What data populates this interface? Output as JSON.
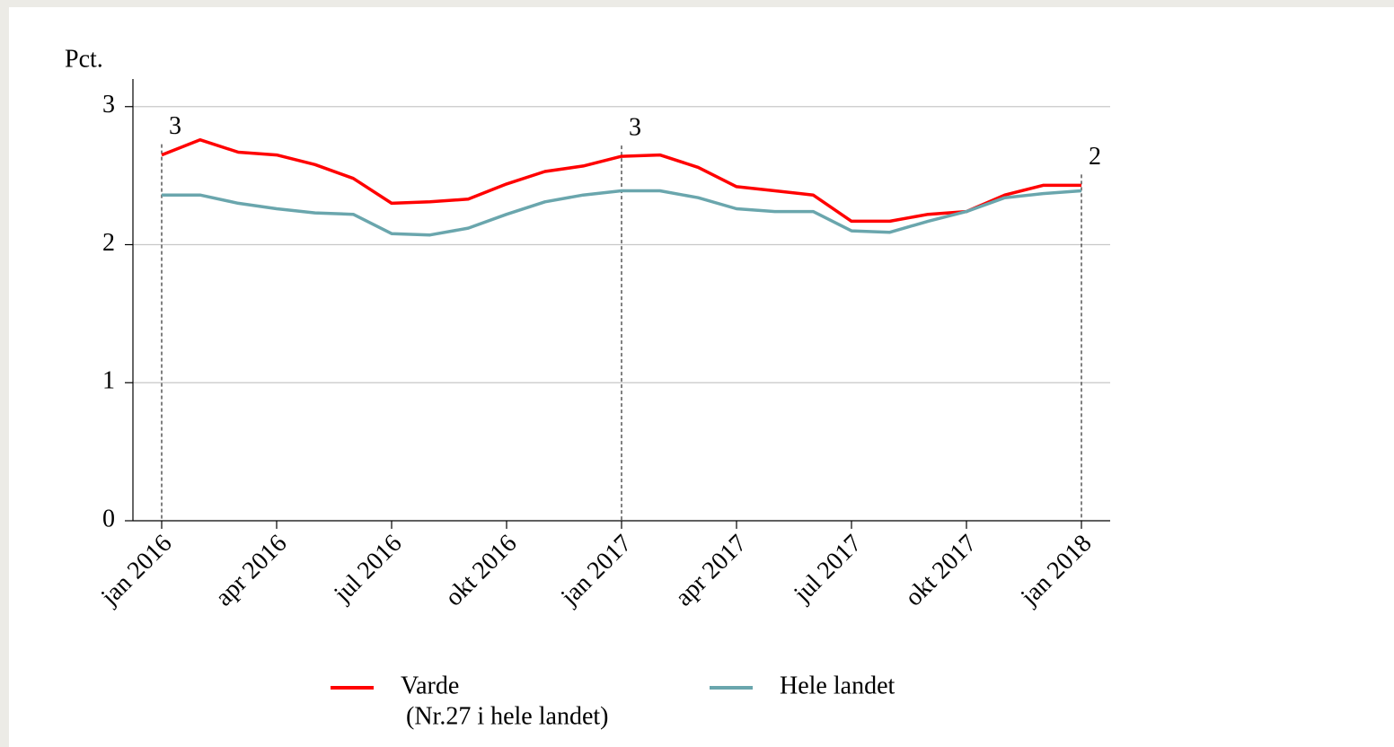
{
  "chart_data": {
    "type": "line",
    "y_label": "Pct.",
    "categories": [
      "jan 2016",
      null,
      null,
      "apr 2016",
      null,
      null,
      "jul 2016",
      null,
      null,
      "okt 2016",
      null,
      null,
      "jan 2017",
      null,
      null,
      "apr 2017",
      null,
      null,
      "jul 2017",
      null,
      null,
      "okt 2017",
      null,
      null,
      "jan 2018"
    ],
    "series": [
      {
        "name": "Varde",
        "legend_subtitle": "(Nr.27 i hele landet)",
        "color": "#ff0000",
        "values": [
          2.65,
          2.76,
          2.67,
          2.65,
          2.58,
          2.48,
          2.3,
          2.31,
          2.33,
          2.44,
          2.53,
          2.57,
          2.64,
          2.65,
          2.56,
          2.42,
          2.39,
          2.36,
          2.17,
          2.17,
          2.22,
          2.24,
          2.36,
          2.43,
          2.43
        ]
      },
      {
        "name": "Hele landet",
        "color": "#6aa6ad",
        "values": [
          2.36,
          2.36,
          2.3,
          2.26,
          2.23,
          2.22,
          2.08,
          2.07,
          2.12,
          2.22,
          2.31,
          2.36,
          2.39,
          2.39,
          2.34,
          2.26,
          2.24,
          2.24,
          2.1,
          2.09,
          2.17,
          2.24,
          2.34,
          2.37,
          2.39
        ]
      }
    ],
    "annotations": [
      {
        "index": 0,
        "text": "3"
      },
      {
        "index": 12,
        "text": "3"
      },
      {
        "index": 24,
        "text": "2"
      }
    ],
    "ylim": [
      0,
      3.2
    ],
    "yticks": [
      0,
      1,
      2,
      3
    ],
    "grid": true
  }
}
